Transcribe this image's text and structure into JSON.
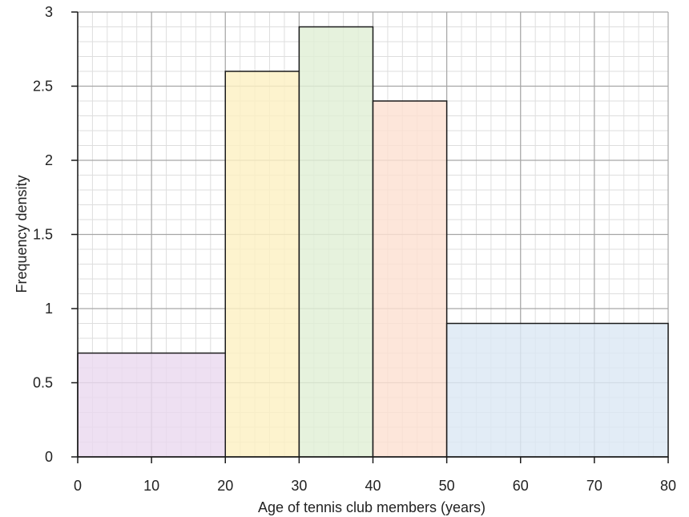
{
  "chart_data": {
    "type": "histogram",
    "xlabel": "Age of tennis club members (years)",
    "ylabel": "Frequency density",
    "xlim": [
      0,
      80
    ],
    "ylim": [
      0,
      3
    ],
    "x_ticks": [
      "0",
      "10",
      "20",
      "30",
      "40",
      "50",
      "60",
      "70",
      "80"
    ],
    "y_ticks": [
      "0",
      "0.5",
      "1",
      "1.5",
      "2",
      "2.5",
      "3"
    ],
    "grid": true,
    "bins": [
      {
        "x0": 0,
        "x1": 20,
        "value": 0.7,
        "color": "#ead9ef"
      },
      {
        "x0": 20,
        "x1": 30,
        "value": 2.6,
        "color": "#fdf0c3"
      },
      {
        "x0": 30,
        "x1": 40,
        "value": 2.9,
        "color": "#e1efd6"
      },
      {
        "x0": 40,
        "x1": 50,
        "value": 2.4,
        "color": "#fde0d2"
      },
      {
        "x0": 50,
        "x1": 80,
        "value": 0.9,
        "color": "#dce8f4"
      }
    ]
  }
}
